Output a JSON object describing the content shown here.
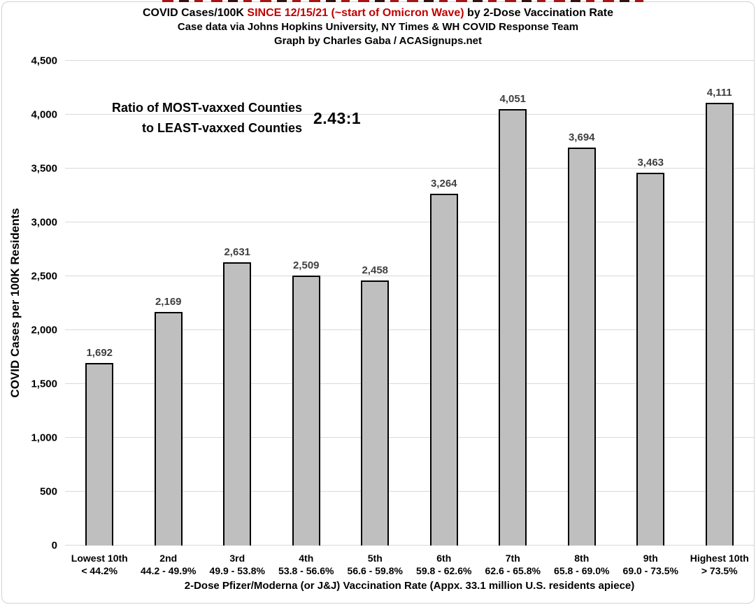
{
  "header": {
    "title_prefix": "COVID Cases/100K ",
    "title_highlight": "SINCE 12/15/21 (~start of Omicron Wave)",
    "title_suffix": " by 2-Dose Vaccination Rate",
    "subtitle": "Case data via Johns Hopkins University, NY Times & WH COVID Response Team",
    "credit": "Graph by Charles Gaba / ACASignups.net"
  },
  "annotation": {
    "line1": "Ratio of MOST-vaxxed Counties",
    "line2": "to LEAST-vaxxed Counties",
    "ratio": "2.43:1"
  },
  "chart_data": {
    "type": "bar",
    "title": "COVID Cases/100K SINCE 12/15/21 (~start of Omicron Wave) by 2-Dose Vaccination Rate",
    "subtitle": "Case data via Johns Hopkins University, NY Times & WH COVID Response Team",
    "credit": "Graph by Charles Gaba / ACASignups.net",
    "categories": [
      "Lowest 10th",
      "2nd",
      "3rd",
      "4th",
      "5th",
      "6th",
      "7th",
      "8th",
      "9th",
      "Highest 10th"
    ],
    "category_ranges": [
      "< 44.2%",
      "44.2 - 49.9%",
      "49.9 - 53.8%",
      "53.8 - 56.6%",
      "56.6 - 59.8%",
      "59.8 - 62.6%",
      "62.6 - 65.8%",
      "65.8 - 69.0%",
      "69.0 - 73.5%",
      "> 73.5%"
    ],
    "values": [
      1692,
      2169,
      2631,
      2509,
      2458,
      3264,
      4051,
      3694,
      3463,
      4111
    ],
    "value_labels": [
      "1,692",
      "2,169",
      "2,631",
      "2,509",
      "2,458",
      "3,264",
      "4,051",
      "3,694",
      "3,463",
      "4,111"
    ],
    "xlabel": "2-Dose Pfizer/Moderna (or J&J) Vaccination Rate (Appx. 33.1 million U.S. residents apiece)",
    "ylabel": "COVID Cases per 100K Residents",
    "ylim": [
      0,
      4500
    ],
    "ytick_step": 500,
    "ytick_labels": [
      "0",
      "500",
      "1,000",
      "1,500",
      "2,000",
      "2,500",
      "3,000",
      "3,500",
      "4,000",
      "4,500"
    ],
    "grid": true,
    "legend": false,
    "annotation_ratio": "2.43:1"
  },
  "colors": {
    "bar_fill": "#bfbfbf",
    "bar_border": "#000000",
    "gridline": "#d9d9d9",
    "value_label": "#404040",
    "title_highlight": "#c00000",
    "frame_border": "#d2d2d2"
  }
}
